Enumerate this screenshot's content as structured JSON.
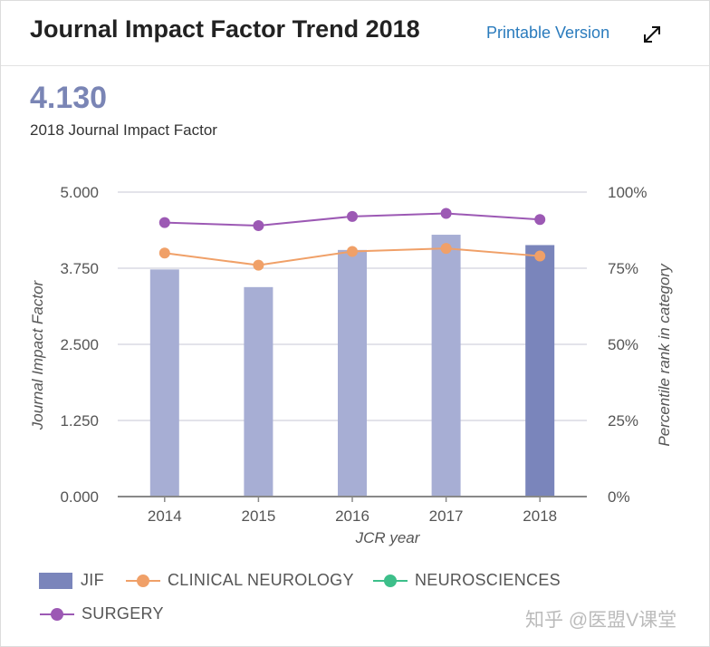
{
  "header": {
    "title": "Journal Impact Factor Trend 2018",
    "printable_label": "Printable Version"
  },
  "summary": {
    "jif_value": "4.130",
    "jif_caption": "2018 Journal Impact Factor"
  },
  "chart_data": {
    "type": "bar",
    "categories": [
      "2014",
      "2015",
      "2016",
      "2017",
      "2018"
    ],
    "xlabel": "JCR year",
    "ylabel": "Journal Impact Factor",
    "ylabel_right": "Percentile rank in category",
    "ylim": [
      0,
      5
    ],
    "yticks": [
      "0.000",
      "1.250",
      "2.500",
      "3.750",
      "5.000"
    ],
    "ylim_right": [
      0,
      100
    ],
    "yticks_right": [
      "0%",
      "25%",
      "50%",
      "75%",
      "100%"
    ],
    "grid": true,
    "legend_position": "bottom",
    "bar_series": {
      "name": "JIF",
      "values": [
        3.73,
        3.44,
        4.05,
        4.3,
        4.13
      ],
      "color": "#a7aed4",
      "highlight_color": "#7a85bb"
    },
    "line_series": [
      {
        "name": "CLINICAL NEUROLOGY",
        "values": [
          80,
          76,
          80.5,
          81.5,
          79
        ],
        "color": "#f0a068"
      },
      {
        "name": "NEUROSCIENCES",
        "values": [],
        "color": "#3dbf8a"
      },
      {
        "name": "SURGERY",
        "values": [
          90,
          89,
          92,
          93,
          91
        ],
        "color": "#9c59b4"
      }
    ]
  },
  "watermark": "知乎 @医盟V课堂"
}
